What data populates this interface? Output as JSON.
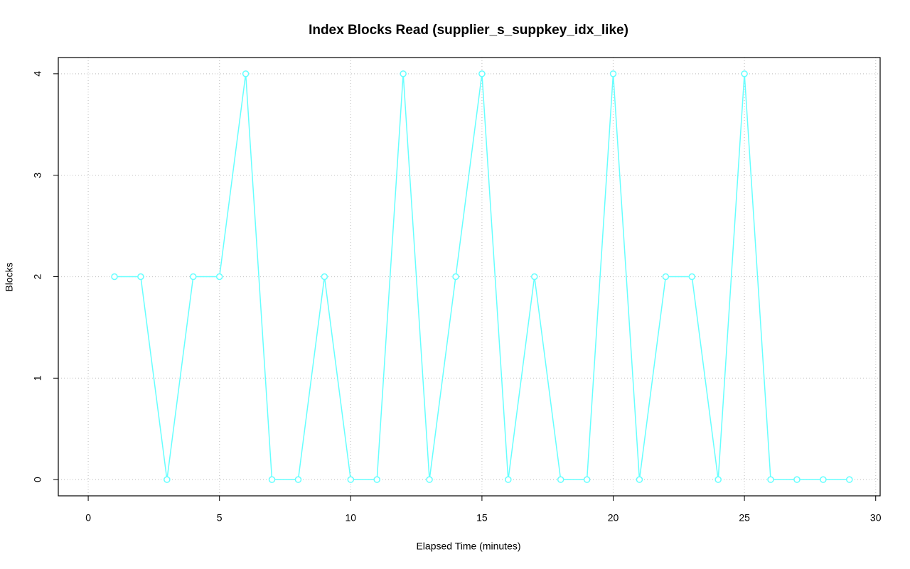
{
  "chart_data": {
    "type": "line",
    "title": "Index Blocks Read (supplier_s_suppkey_idx_like)",
    "xlabel": "Elapsed Time (minutes)",
    "ylabel": "Blocks",
    "x": [
      1,
      2,
      3,
      4,
      5,
      6,
      7,
      8,
      9,
      10,
      11,
      12,
      13,
      14,
      15,
      16,
      17,
      18,
      19,
      20,
      21,
      22,
      23,
      24,
      25,
      26,
      27,
      28,
      29
    ],
    "series": [
      {
        "color": "#66ffff",
        "values": [
          2,
          2,
          0,
          2,
          2,
          4,
          0,
          0,
          2,
          0,
          0,
          4,
          0,
          2,
          4,
          0,
          2,
          0,
          0,
          4,
          0,
          2,
          2,
          0,
          4,
          0,
          0,
          0,
          0
        ]
      }
    ],
    "xlim": [
      -1.14,
      30.17
    ],
    "ylim": [
      -0.16,
      4.16
    ],
    "xticks": [
      0,
      5,
      10,
      15,
      20,
      25,
      30
    ],
    "yticks": [
      0,
      1,
      2,
      3,
      4
    ],
    "grid": true
  }
}
